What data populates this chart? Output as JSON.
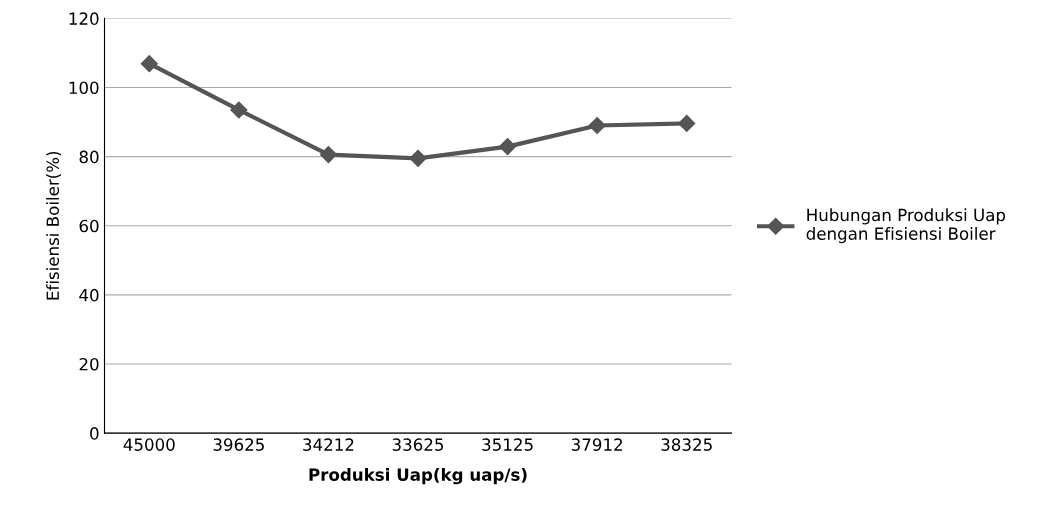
{
  "chart_data": {
    "type": "line",
    "xlabel": "Produksi Uap(kg uap/s)",
    "ylabel": "Efisiensi Boiler(%)",
    "categories": [
      "45000",
      "39625",
      "34212",
      "33625",
      "35125",
      "37912",
      "38325"
    ],
    "series": [
      {
        "name": "Hubungan Produksi Uap dengan Efisiensi Boiler",
        "color": "#555555",
        "values": [
          106.9,
          93.5,
          80.6,
          79.5,
          82.9,
          89.0,
          89.6
        ]
      }
    ],
    "ylim": [
      0,
      120
    ],
    "yticks": [
      0,
      20,
      40,
      60,
      80,
      100,
      120
    ],
    "grid": "y",
    "legend": "right",
    "marker": "diamond",
    "line_style": "solid"
  }
}
